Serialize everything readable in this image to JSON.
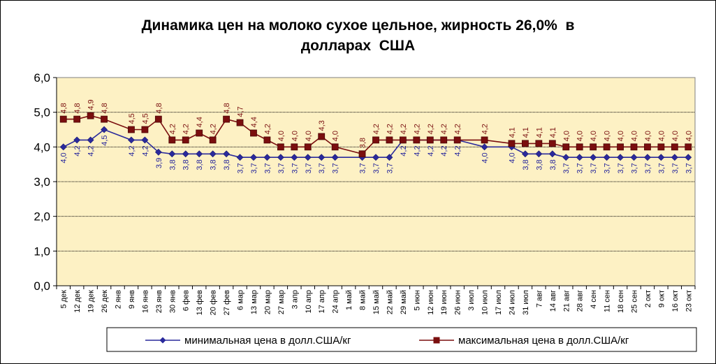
{
  "chart_data": {
    "type": "line",
    "title": [
      "Динамика цен на молоко сухое цельное, жирность 26,0%  в",
      "долларах  США"
    ],
    "xlabel": "",
    "ylabel": "",
    "ylim": [
      0,
      6
    ],
    "y_ticks": [
      "0,0",
      "1,0",
      "2,0",
      "3,0",
      "4,0",
      "5,0",
      "6,0"
    ],
    "grid": true,
    "legend_position": "bottom",
    "categories": [
      "5 дек",
      "12 дек",
      "19 дек",
      "26 дек",
      "2 янв",
      "9 янв",
      "16 янв",
      "23 янв",
      "30 янв",
      "6 фев",
      "13 фев",
      "20 фев",
      "27 фев",
      "6 мар",
      "13 мар",
      "20 мар",
      "27 мар",
      "3 апр",
      "10 апр",
      "17 апр",
      "24 апр",
      "1 май",
      "8 май",
      "15 май",
      "22 май",
      "29 май",
      "5 июн",
      "12 июн",
      "19 июн",
      "26 июн",
      "3 июл",
      "10 июл",
      "17 июл",
      "24 июл",
      "31 июл",
      "7 авг",
      "14 авг",
      "21 авг",
      "28 авг",
      "4 сен",
      "11 сен",
      "18 сен",
      "25 сен",
      "2 окт",
      "9 окт",
      "16 окт",
      "23 окт"
    ],
    "series": [
      {
        "name": "минимальная цена в долл.США/кг",
        "color": "#2a2a9c",
        "marker": "diamond",
        "values": [
          4.0,
          4.2,
          4.2,
          4.5,
          null,
          4.2,
          4.2,
          3.85,
          3.8,
          3.8,
          3.8,
          3.8,
          3.8,
          3.7,
          3.7,
          3.7,
          3.7,
          3.7,
          3.7,
          3.7,
          3.7,
          null,
          3.7,
          3.7,
          3.7,
          4.2,
          4.2,
          4.2,
          4.2,
          4.2,
          null,
          4.0,
          null,
          4.0,
          3.8,
          3.8,
          3.8,
          3.7,
          3.7,
          3.7,
          3.7,
          3.7,
          3.7,
          3.7,
          3.7,
          3.7,
          3.7
        ],
        "labels": [
          "4,0",
          "4,2",
          "4,2",
          "4,5",
          "",
          "4,2",
          "4,2",
          "3,9",
          "3,8",
          "3,8",
          "3,8",
          "3,8",
          "3,8",
          "3,7",
          "3,7",
          "3,7",
          "3,7",
          "3,7",
          "3,7",
          "3,7",
          "3,7",
          "",
          "3,7",
          "3,7",
          "3,7",
          "4,2",
          "4,2",
          "4,2",
          "4,2",
          "4,2",
          "",
          "4,0",
          "",
          "4,0",
          "3,8",
          "3,8",
          "3,8",
          "3,7",
          "3,7",
          "3,7",
          "3,7",
          "3,7",
          "3,7",
          "3,7",
          "3,7",
          "3,7",
          "3,7"
        ]
      },
      {
        "name": "максимальная цена в долл.США/кг",
        "color": "#7a0e0e",
        "marker": "square",
        "values": [
          4.8,
          4.8,
          4.9,
          4.8,
          null,
          4.5,
          4.5,
          4.8,
          4.2,
          4.2,
          4.4,
          4.2,
          4.8,
          4.7,
          4.4,
          4.2,
          4.0,
          4.0,
          4.0,
          4.3,
          4.0,
          null,
          3.8,
          4.2,
          4.2,
          4.2,
          4.2,
          4.2,
          4.2,
          4.2,
          null,
          4.2,
          null,
          4.1,
          4.1,
          4.1,
          4.1,
          4.0,
          4.0,
          4.0,
          4.0,
          4.0,
          4.0,
          4.0,
          4.0,
          4.0,
          4.0
        ],
        "labels": [
          "4,8",
          "4,8",
          "4,9",
          "4,8",
          "",
          "4,5",
          "4,5",
          "4,8",
          "4,2",
          "4,2",
          "4,4",
          "4,2",
          "4,8",
          "4,7",
          "4,4",
          "4,2",
          "4,0",
          "4,0",
          "4,0",
          "4,3",
          "4,0",
          "",
          "3,8",
          "4,2",
          "4,2",
          "4,2",
          "4,2",
          "4,2",
          "4,2",
          "4,2",
          "",
          "4,2",
          "",
          "4,1",
          "4,1",
          "4,1",
          "4,1",
          "4,0",
          "4,0",
          "4,0",
          "4,0",
          "4,0",
          "4,0",
          "4,0",
          "4,0",
          "4,0",
          "4,0"
        ]
      }
    ]
  }
}
